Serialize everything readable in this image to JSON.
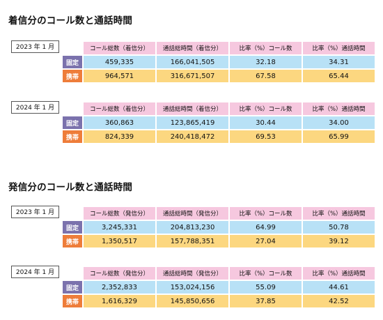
{
  "incoming": {
    "title": "着信分のコール数と通話時間",
    "headers": [
      "コール総数（着信分）",
      "通話総時間（着信分）",
      "比率（%）コール数",
      "比率（%）通話時間"
    ],
    "tables": [
      {
        "period": "2023 年 1 月",
        "rows": [
          {
            "label": "固定",
            "values": [
              "459,335",
              "166,041,505",
              "32.18",
              "34.31"
            ]
          },
          {
            "label": "携帯",
            "values": [
              "964,571",
              "316,671,507",
              "67.58",
              "65.44"
            ]
          }
        ]
      },
      {
        "period": "2024 年 1 月",
        "rows": [
          {
            "label": "固定",
            "values": [
              "360,863",
              "123,865,419",
              "30.44",
              "34.00"
            ]
          },
          {
            "label": "携帯",
            "values": [
              "824,339",
              "240,418,472",
              "69.53",
              "65.99"
            ]
          }
        ]
      }
    ]
  },
  "outgoing": {
    "title": "発信分のコール数と通話時間",
    "headers": [
      "コール総数（発信分）",
      "通話総時間（発信分）",
      "比率（%）コール数",
      "比率（%）通話時間"
    ],
    "tables": [
      {
        "period": "2023 年 1 月",
        "rows": [
          {
            "label": "固定",
            "values": [
              "3,245,331",
              "204,813,230",
              "64.99",
              "50.78"
            ]
          },
          {
            "label": "携帯",
            "values": [
              "1,350,517",
              "157,788,351",
              "27.04",
              "39.12"
            ]
          }
        ]
      },
      {
        "period": "2024 年 1 月",
        "rows": [
          {
            "label": "固定",
            "values": [
              "2,352,833",
              "153,024,156",
              "55.09",
              "44.61"
            ]
          },
          {
            "label": "携帯",
            "values": [
              "1,616,329",
              "145,850,656",
              "37.85",
              "42.52"
            ]
          }
        ]
      }
    ]
  },
  "colors": {
    "header_bg": "#f6c8df",
    "fixed_label_bg": "#7b72ad",
    "mobile_label_bg": "#ee7d3a",
    "fixed_row_bg": "#b8e1f6",
    "mobile_row_bg": "#fcd780"
  }
}
